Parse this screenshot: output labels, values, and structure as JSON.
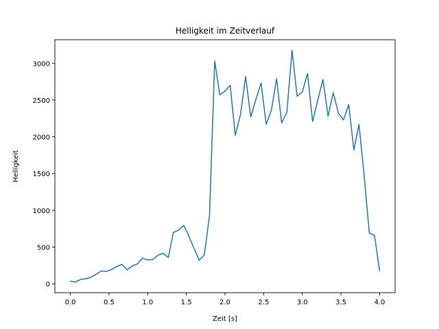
{
  "chart_data": {
    "type": "line",
    "title": "Helligkeit im Zeitverlauf",
    "xlabel": "Zeit [s]",
    "ylabel": "Helligkeit",
    "xlim": [
      -0.2,
      4.2
    ],
    "ylim": [
      -120,
      3320
    ],
    "xticks": [
      0.0,
      0.5,
      1.0,
      1.5,
      2.0,
      2.5,
      3.0,
      3.5,
      4.0
    ],
    "xtick_labels": [
      "0.0",
      "0.5",
      "1.0",
      "1.5",
      "2.0",
      "2.5",
      "3.0",
      "3.5",
      "4.0"
    ],
    "yticks": [
      0,
      500,
      1000,
      1500,
      2000,
      2500,
      3000
    ],
    "ytick_labels": [
      "0",
      "500",
      "1000",
      "1500",
      "2000",
      "2500",
      "3000"
    ],
    "grid": false,
    "color": "#1f77b4",
    "series": [
      {
        "x": [
          0.0,
          0.067,
          0.133,
          0.2,
          0.267,
          0.333,
          0.4,
          0.467,
          0.533,
          0.6,
          0.667,
          0.733,
          0.8,
          0.867,
          0.933,
          1.0,
          1.067,
          1.133,
          1.2,
          1.267,
          1.333,
          1.4,
          1.467,
          1.533,
          1.6,
          1.667,
          1.733,
          1.8,
          1.867,
          1.933,
          2.0,
          2.067,
          2.133,
          2.2,
          2.267,
          2.333,
          2.4,
          2.467,
          2.533,
          2.6,
          2.667,
          2.733,
          2.8,
          2.867,
          2.933,
          3.0,
          3.067,
          3.133,
          3.2,
          3.267,
          3.333,
          3.4,
          3.467,
          3.533,
          3.6,
          3.667,
          3.733,
          3.8,
          3.867,
          3.933,
          4.0
        ],
        "values": [
          35,
          25,
          60,
          70,
          90,
          130,
          175,
          170,
          195,
          235,
          265,
          190,
          245,
          270,
          350,
          325,
          330,
          390,
          415,
          360,
          700,
          730,
          795,
          650,
          480,
          320,
          395,
          930,
          3030,
          2570,
          2620,
          2700,
          2020,
          2300,
          2820,
          2270,
          2510,
          2730,
          2170,
          2360,
          2790,
          2190,
          2330,
          3175,
          2550,
          2610,
          2860,
          2210,
          2500,
          2780,
          2280,
          2600,
          2320,
          2230,
          2440,
          1820,
          2170,
          1470,
          690,
          660,
          180
        ]
      }
    ]
  }
}
